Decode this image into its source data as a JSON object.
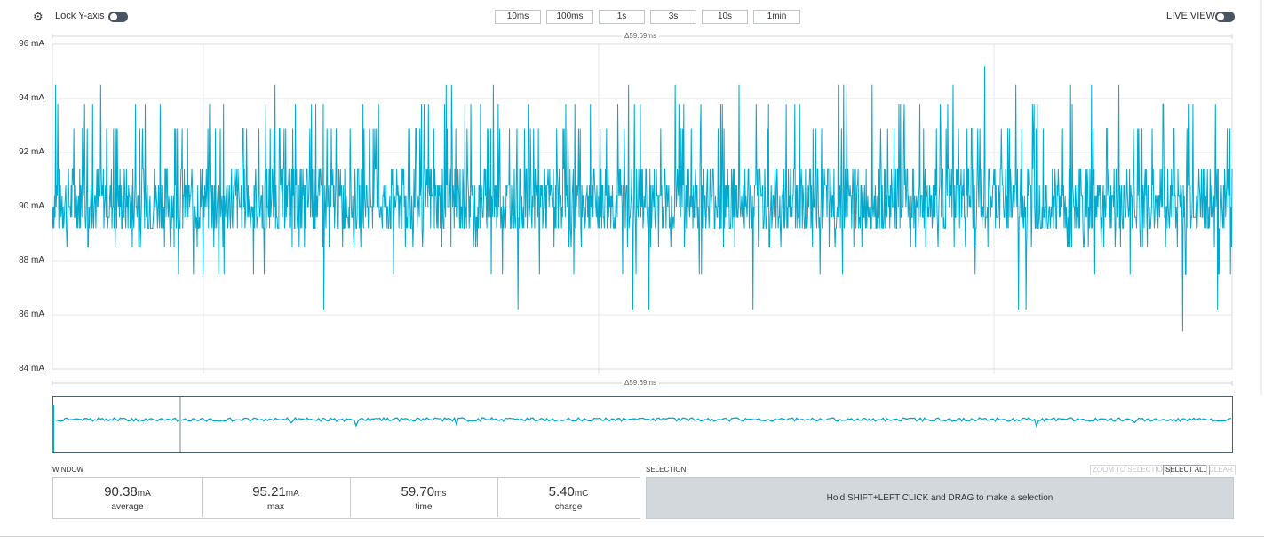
{
  "toolbar": {
    "lock_y_label": "Lock Y-axis",
    "live_view_label": "LIVE VIEW",
    "time_buttons": [
      "10ms",
      "100ms",
      "1s",
      "3s",
      "10s",
      "1min"
    ]
  },
  "chart": {
    "delta_top": "Δ59.69ms",
    "delta_bottom": "Δ59.69ms",
    "y_ticks": [
      "96 mA",
      "94 mA",
      "92 mA",
      "90 mA",
      "88 mA",
      "86 mA",
      "84 mA"
    ]
  },
  "chart_data": {
    "type": "line",
    "series": [
      {
        "values": []
      }
    ],
    "ylim": [
      84,
      96
    ],
    "yticks": [
      96,
      94,
      92,
      90,
      88,
      86,
      84
    ],
    "ylabel": "",
    "xlabel": "",
    "grid": true,
    "color": "#00a9ce",
    "summary": {
      "mean": 90.38,
      "max": 95.21,
      "min": 85.4
    }
  },
  "window": {
    "heading": "WINDOW",
    "stats": [
      {
        "value": "90.38",
        "unit": "mA",
        "label": "average"
      },
      {
        "value": "95.21",
        "unit": "mA",
        "label": "max"
      },
      {
        "value": "59.70",
        "unit": "ms",
        "label": "time"
      },
      {
        "value": "5.40",
        "unit": "mC",
        "label": "charge"
      }
    ]
  },
  "selection": {
    "heading": "SELECTION",
    "zoom_label": "ZOOM TO SELECTION",
    "select_all_label": "SELECT ALL",
    "clear_label": "CLEAR",
    "hint": "Hold SHIFT+LEFT CLICK and DRAG to make a selection"
  },
  "colors": {
    "trace": "#00a9ce",
    "selection_bg": "#d3d8dc",
    "toggle": "#4a5361"
  }
}
